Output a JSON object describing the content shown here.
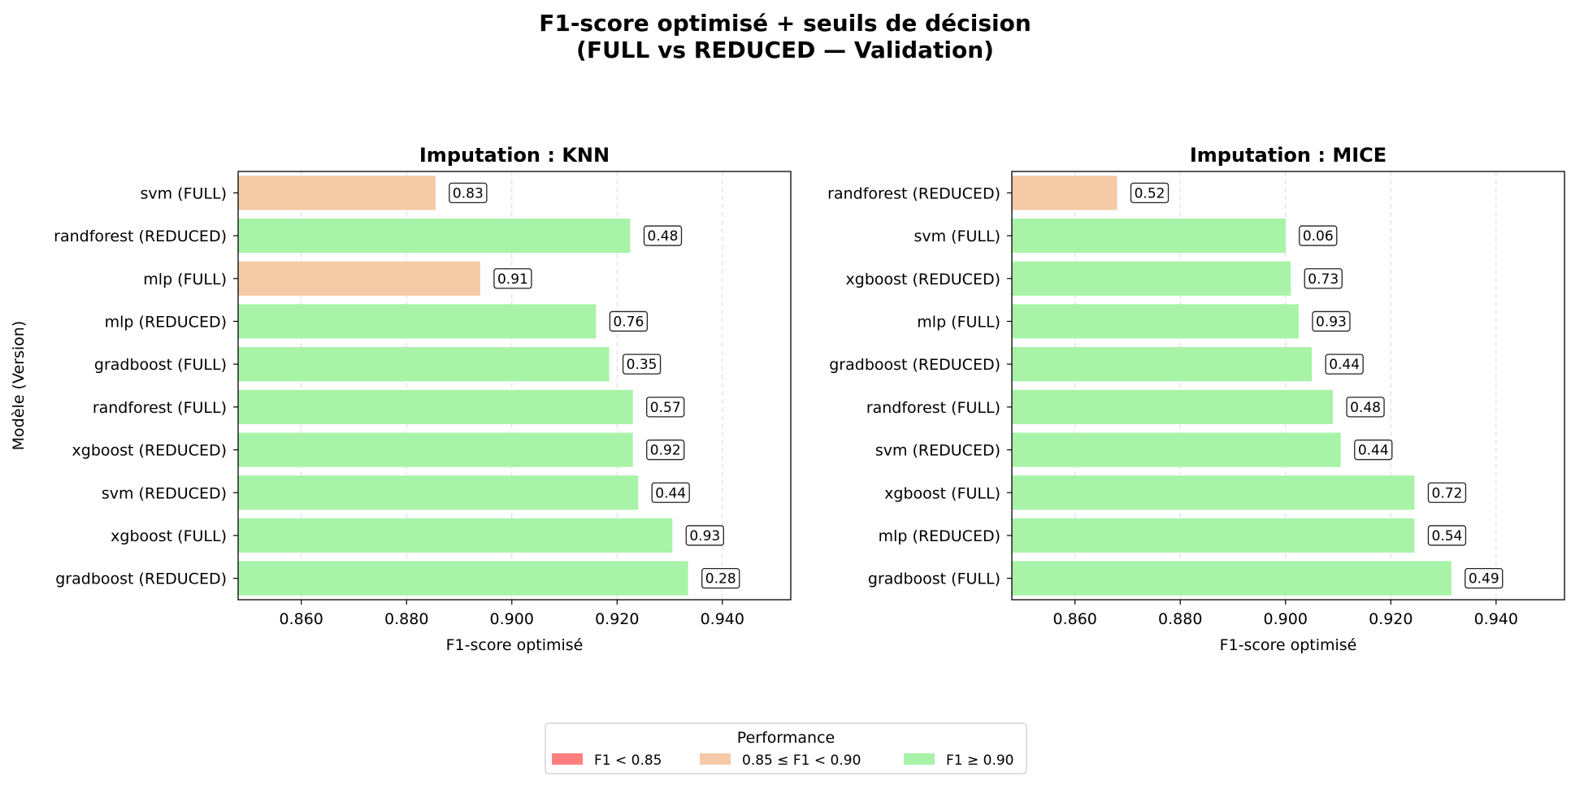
{
  "figure": {
    "title_line1": "F1-score optimisé + seuils de décision",
    "title_line2": "(FULL vs REDUCED — Validation)"
  },
  "colors": {
    "low": "#ff7f7f",
    "mid": "#f4cba6",
    "high": "#a8f3a8",
    "grid": "#d9d9d9"
  },
  "chart_data": [
    {
      "type": "bar",
      "orientation": "horizontal",
      "title": "Imputation : KNN",
      "xlabel": "F1-score optimisé",
      "ylabel": "Modèle (Version)",
      "xlim": [
        0.848,
        0.953
      ],
      "xticks": [
        0.86,
        0.88,
        0.9,
        0.92,
        0.94
      ],
      "xtick_labels": [
        "0.860",
        "0.880",
        "0.900",
        "0.920",
        "0.940"
      ],
      "grid": "x-dashed",
      "categories": [
        "svm (FULL)",
        "randforest (REDUCED)",
        "mlp (FULL)",
        "mlp (REDUCED)",
        "gradboost (FULL)",
        "randforest (FULL)",
        "xgboost (REDUCED)",
        "svm (REDUCED)",
        "xgboost (FULL)",
        "gradboost (REDUCED)"
      ],
      "values": [
        0.8855,
        0.9225,
        0.894,
        0.916,
        0.9185,
        0.923,
        0.923,
        0.924,
        0.9305,
        0.9335
      ],
      "threshold_labels": [
        "0.83",
        "0.48",
        "0.91",
        "0.76",
        "0.35",
        "0.57",
        "0.92",
        "0.44",
        "0.93",
        "0.28"
      ]
    },
    {
      "type": "bar",
      "orientation": "horizontal",
      "title": "Imputation : MICE",
      "xlabel": "F1-score optimisé",
      "ylabel": "",
      "xlim": [
        0.848,
        0.953
      ],
      "xticks": [
        0.86,
        0.88,
        0.9,
        0.92,
        0.94
      ],
      "xtick_labels": [
        "0.860",
        "0.880",
        "0.900",
        "0.920",
        "0.940"
      ],
      "grid": "x-dashed",
      "categories": [
        "randforest (REDUCED)",
        "svm (FULL)",
        "xgboost (REDUCED)",
        "mlp (FULL)",
        "gradboost (REDUCED)",
        "randforest (FULL)",
        "svm (REDUCED)",
        "xgboost (FULL)",
        "mlp (REDUCED)",
        "gradboost (FULL)"
      ],
      "values": [
        0.868,
        0.9,
        0.901,
        0.9025,
        0.905,
        0.909,
        0.9105,
        0.9245,
        0.9245,
        0.9315
      ],
      "threshold_labels": [
        "0.52",
        "0.06",
        "0.73",
        "0.93",
        "0.44",
        "0.48",
        "0.44",
        "0.72",
        "0.54",
        "0.49"
      ]
    }
  ],
  "legend": {
    "title": "Performance",
    "placement": "bottom-center",
    "items": [
      {
        "label": "F1 < 0.85",
        "color": "#ff7f7f"
      },
      {
        "label": "0.85 ≤ F1 < 0.90",
        "color": "#f4cba6"
      },
      {
        "label": "F1 ≥ 0.90",
        "color": "#a8f3a8"
      }
    ]
  }
}
